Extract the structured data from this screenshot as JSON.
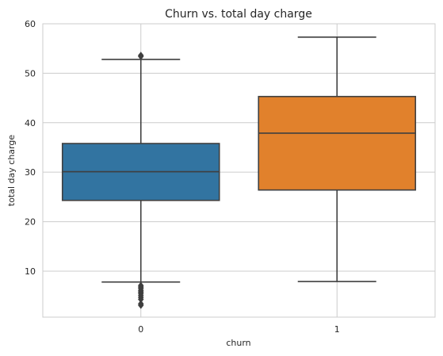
{
  "chart_data": {
    "type": "box",
    "title": "Churn vs. total day charge",
    "xlabel": "churn",
    "ylabel": "total day charge",
    "ylim": [
      0.7,
      60
    ],
    "yticks": [
      10,
      20,
      30,
      40,
      50,
      60
    ],
    "grid": true,
    "categories": [
      "0",
      "1"
    ],
    "boxes": [
      {
        "category": "0",
        "color": "#3274a1",
        "whisker_low": 7.8,
        "q1": 24.3,
        "median": 30.1,
        "q3": 35.8,
        "whisker_high": 52.8,
        "outliers": [
          53.6,
          53.4,
          7.1,
          6.8,
          6.5,
          6.1,
          5.8,
          5.5,
          5.1,
          4.7,
          4.3,
          3.4,
          3.1
        ]
      },
      {
        "category": "1",
        "color": "#e1812c",
        "whisker_low": 7.9,
        "q1": 26.4,
        "median": 37.9,
        "q3": 45.3,
        "whisker_high": 57.3,
        "outliers": []
      }
    ]
  }
}
